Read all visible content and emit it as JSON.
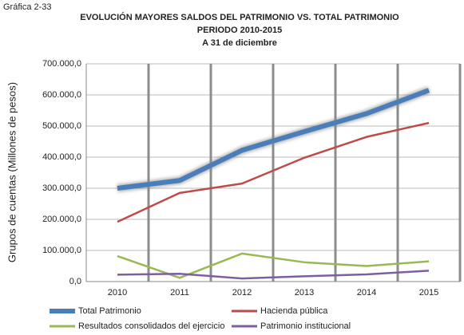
{
  "chart_data": {
    "type": "line",
    "caption": "Gráfica 2-33",
    "title": "EVOLUCIÓN MAYORES SALDOS DEL PATRIMONIO VS. TOTAL PATRIMONIO",
    "subtitle": "PERIODO 2010-2015",
    "subtitle2": "A 31 de diciembre",
    "y_label": "Grupos de cuentas (Millones de pesos)",
    "categories": [
      "2010",
      "2011",
      "2012",
      "2013",
      "2014",
      "2015"
    ],
    "series": [
      {
        "name": "Total Patrimonio",
        "color": "#4a7ebb",
        "values": [
          300000,
          325000,
          422000,
          482000,
          540000,
          615000
        ]
      },
      {
        "name": "Hacienda pública",
        "color": "#be4b48",
        "values": [
          192000,
          285000,
          315000,
          398000,
          465000,
          510000
        ]
      },
      {
        "name": "Resultados consolidados del ejercicio",
        "color": "#98b954",
        "values": [
          82000,
          12000,
          90000,
          62000,
          50000,
          65000
        ]
      },
      {
        "name": "Patrimonio institucional",
        "color": "#7d5fa0",
        "values": [
          22000,
          25000,
          10000,
          17000,
          23000,
          35000
        ]
      }
    ],
    "ylim": [
      0,
      700000
    ],
    "yticks": [
      {
        "value": 0,
        "label": "0,0"
      },
      {
        "value": 100000,
        "label": "100.000,0"
      },
      {
        "value": 200000,
        "label": "200.000,0"
      },
      {
        "value": 300000,
        "label": "300.000,0"
      },
      {
        "value": 400000,
        "label": "400.000,0"
      },
      {
        "value": 500000,
        "label": "500.000,0"
      },
      {
        "value": 600000,
        "label": "600.000,0"
      },
      {
        "value": 700000,
        "label": "700.000,0"
      }
    ],
    "grid": true
  }
}
